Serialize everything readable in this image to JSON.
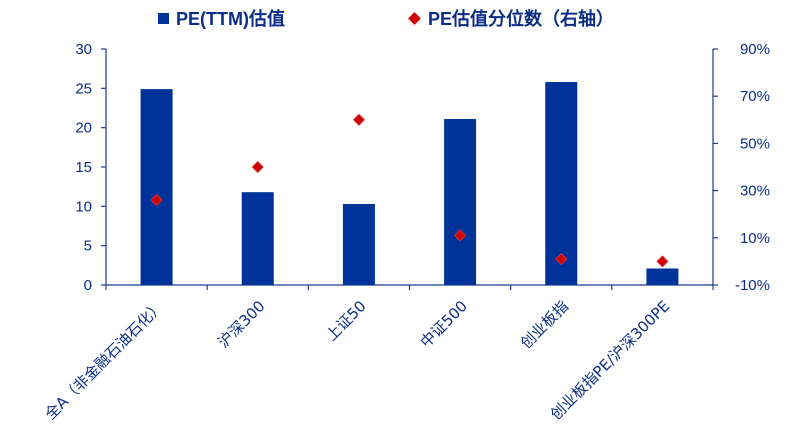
{
  "chart_data": {
    "type": "bar",
    "categories": [
      "全A（非金融石油石化）",
      "沪深300",
      "上证50",
      "中证500",
      "创业板指",
      "创业板指PE/沪深300PE"
    ],
    "series": [
      {
        "name": "PE(TTM)估值",
        "kind": "bar",
        "axis": "left",
        "values": [
          24.9,
          11.8,
          10.3,
          21.1,
          25.8,
          2.1
        ],
        "color": "#003399"
      },
      {
        "name": "PE估值分位数（右轴）",
        "kind": "scatter",
        "axis": "right",
        "marker": "diamond",
        "values": [
          0.26,
          0.4,
          0.6,
          0.11,
          0.01,
          0.0
        ],
        "color": "#cc0000"
      }
    ],
    "y_left": {
      "min": 0,
      "max": 30,
      "ticks": [
        "0",
        "5",
        "10",
        "15",
        "20",
        "25",
        "30"
      ]
    },
    "y_right": {
      "min": -0.1,
      "max": 0.9,
      "ticks": [
        "-10%",
        "10%",
        "30%",
        "50%",
        "70%",
        "90%"
      ]
    },
    "legend_position": "top",
    "grid": false,
    "axis_color": "#1f3a93"
  }
}
